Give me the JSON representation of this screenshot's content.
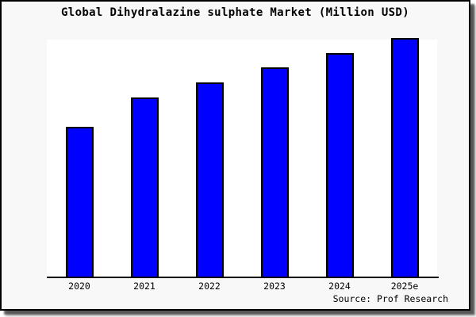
{
  "title": "Global Dihydralazine sulphate Market (Million USD)",
  "source": "Source: Prof Research",
  "colors": {
    "bar_fill": "#0000ff",
    "bar_border": "#000000",
    "plot_background": "#ffffff",
    "frame_background": "#f8f8f8",
    "frame_border": "#000000",
    "text": "#000000"
  },
  "chart_data": {
    "type": "bar",
    "title": "Global Dihydralazine sulphate Market (Million USD)",
    "categories": [
      "2020",
      "2021",
      "2022",
      "2023",
      "2024",
      "2025e"
    ],
    "values": [
      62.5,
      74.9,
      81.3,
      87.6,
      93.6,
      100
    ],
    "values_unit": "percent of tallest bar (no numeric y-axis scale shown in image)",
    "xlabel": "",
    "ylabel": "",
    "ylim": [
      0,
      100
    ],
    "y_axis_labels": "none",
    "grid": false,
    "legend": "none",
    "annotations": [
      "Source: Prof Research"
    ]
  }
}
